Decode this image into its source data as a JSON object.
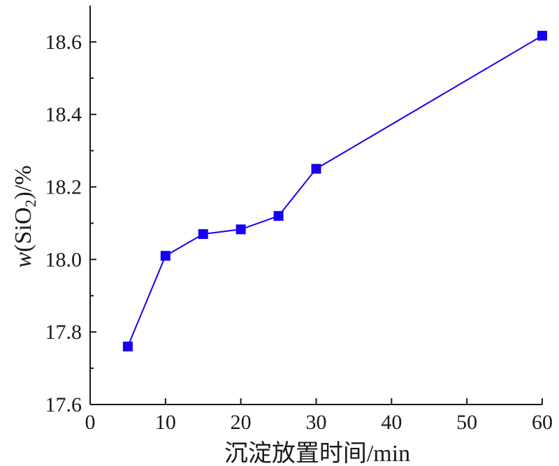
{
  "chart_data": {
    "type": "line",
    "title": "",
    "xlabel": "沉淀放置时间/min",
    "ylabel": {
      "prefix": "w",
      "open": "(",
      "species": "SiO",
      "subscript": "2",
      "close": ")",
      "unit": "/%"
    },
    "xlim": [
      0,
      60
    ],
    "ylim": [
      17.6,
      18.7
    ],
    "x_ticks": [
      "0",
      "10",
      "20",
      "30",
      "40",
      "50",
      "60"
    ],
    "y_ticks": [
      "17.6",
      "17.8",
      "18.0",
      "18.2",
      "18.4",
      "18.6"
    ],
    "grid": false,
    "legend": "none",
    "series": [
      {
        "color": "#1500f5",
        "marker": "square",
        "x": [
          5,
          10,
          15,
          20,
          25,
          30,
          60
        ],
        "y": [
          17.76,
          18.01,
          18.07,
          18.083,
          18.12,
          18.25,
          18.617
        ]
      }
    ]
  }
}
